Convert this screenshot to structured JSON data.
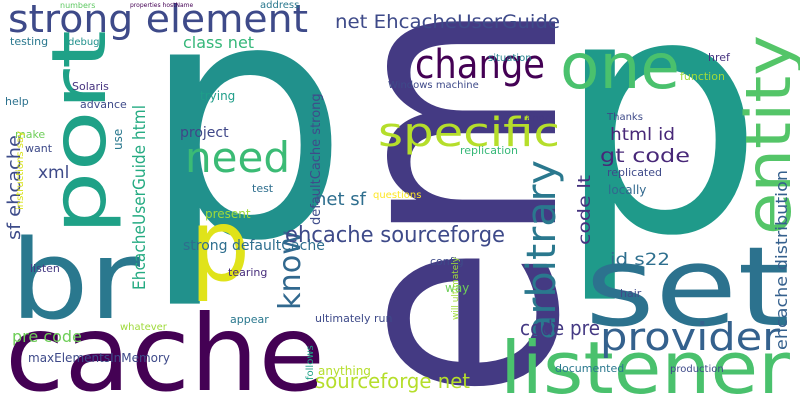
{
  "words": [
    "em",
    "p",
    "p",
    "cache",
    "br",
    "port",
    "strong element",
    "one",
    "set",
    "listener",
    "entity",
    "change",
    "specific",
    "need",
    "p",
    "arbitrary",
    "provider",
    "know",
    "ehcache sourceforge",
    "net EhcacheUserGuide",
    "sourceforge net",
    "code pre",
    "gt code",
    "html id",
    "id s22",
    "code lt",
    "ehcache distribution",
    "EhcacheUserGuide html",
    "sf ehcache",
    "xml",
    "pre code",
    "maxElementsInMemory",
    "class net",
    "project",
    "strong defaultCache",
    "net sf",
    "defaultCache strong",
    "trying",
    "advance",
    "Solaris",
    "help",
    "testing",
    "debug",
    "numbers",
    "address",
    "make",
    "want",
    "use",
    "test",
    "present",
    "tearing",
    "appear",
    "whatever",
    "listen",
    "follows",
    "ultimately run",
    "anything",
    "config",
    "way",
    "documented",
    "production",
    "hair",
    "locally",
    "replicated",
    "Thanks",
    "replication",
    "range",
    "situation",
    "href",
    "function",
    "Windows machine",
    "questions",
    "instructions say",
    "will ultimately",
    "properties hostName"
  ]
}
